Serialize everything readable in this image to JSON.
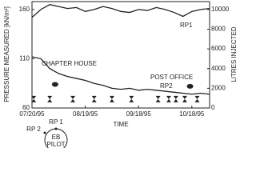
{
  "chart_data": {
    "type": "line",
    "xlabel": "TIME",
    "ylabel": "PRESSURE MEASURED [kN/m²]",
    "y2label": "LITRES INJECTED",
    "xlim": [
      0,
      100
    ],
    "xticks": [
      {
        "value": 0,
        "label": "07/20/95"
      },
      {
        "value": 30,
        "label": "08/19/95"
      },
      {
        "value": 60,
        "label": "09/18/95"
      },
      {
        "value": 90,
        "label": "10/18/95"
      }
    ],
    "ylim": [
      60,
      168
    ],
    "yticks": [
      60,
      110,
      160
    ],
    "y2lim": [
      0,
      10800
    ],
    "y2ticks": [
      0,
      2000,
      4000,
      6000,
      8000,
      10000
    ],
    "annotations": [
      "RP1",
      "RP2",
      "CHAPTER HOUSE",
      "POST OFFICE"
    ],
    "series": [
      {
        "color": "#222",
        "x": [
          0,
          5,
          10,
          15,
          20,
          25,
          30,
          35,
          40,
          45,
          50,
          55,
          60,
          65,
          70,
          75,
          80,
          85,
          90,
          95,
          100
        ],
        "values": [
          152,
          160,
          165,
          163,
          161,
          162,
          158,
          160,
          163,
          161,
          158,
          157,
          160,
          159,
          162,
          160,
          157,
          153,
          158,
          160,
          161
        ]
      },
      {
        "color": "#222",
        "x": [
          0,
          5,
          10,
          15,
          20,
          25,
          30,
          35,
          40,
          45,
          50,
          55,
          60,
          65,
          70,
          75,
          80,
          85,
          90,
          95,
          100
        ],
        "values": [
          112,
          110,
          100,
          95,
          92,
          90,
          88,
          85,
          83,
          80,
          79,
          80,
          78,
          79,
          78,
          77,
          76,
          75,
          74,
          75,
          74
        ]
      },
      {
        "color": "#222",
        "type": "scatter",
        "marker": "dot",
        "x": [
          13,
          89
        ],
        "values": [
          84,
          82
        ]
      },
      {
        "color": "#222",
        "type": "scatter",
        "marker": "hourglass",
        "axis": "y2",
        "x": [
          1,
          10,
          23,
          35,
          45,
          56,
          71,
          77,
          81,
          86,
          93
        ],
        "values": [
          900,
          900,
          900,
          900,
          900,
          900,
          900,
          900,
          900,
          900,
          900
        ]
      }
    ]
  },
  "diagram": {
    "labels": [
      "RP 1",
      "RP 2",
      "EB",
      "PILOT"
    ]
  }
}
